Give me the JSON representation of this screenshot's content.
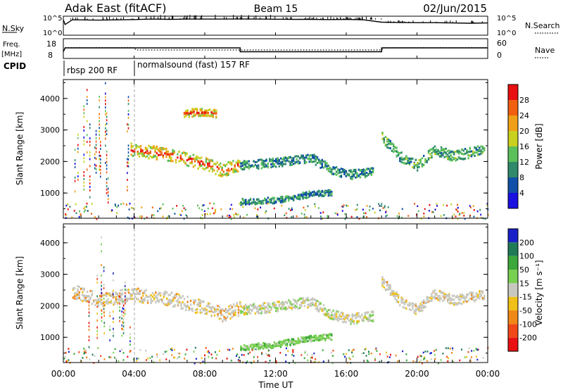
{
  "header": {
    "station": "Adak East (fitACF)",
    "beam": "Beam 15",
    "date": "02/Jun/2015"
  },
  "chart_data": [
    {
      "type": "line",
      "panel": "noise",
      "left_label": "N.Sky",
      "right_label": "N.Search",
      "yticks_left": [
        "10^5",
        "10^0"
      ],
      "yticks_right": [
        "10^5",
        "10^0"
      ],
      "series": [
        {
          "x": [
            0,
            0.1,
            0.5,
            1,
            2,
            3,
            4,
            5,
            6,
            7,
            8,
            9,
            10,
            11,
            12,
            13,
            14,
            15,
            16,
            17,
            18,
            19,
            20,
            21,
            22,
            23,
            24
          ],
          "y": [
            0.9,
            0.6,
            0.9,
            0.9,
            0.88,
            0.9,
            0.92,
            0.95,
            0.93,
            0.95,
            0.95,
            0.95,
            0.96,
            0.95,
            0.94,
            0.93,
            0.93,
            0.92,
            0.93,
            0.9,
            0.75,
            0.73,
            0.72,
            0.72,
            0.7,
            0.68,
            0.7
          ]
        }
      ]
    },
    {
      "type": "line",
      "panel": "frequency",
      "left_label": "Freq. [MHz]",
      "right_label": "Nave",
      "yticks_left": [
        "18",
        "8"
      ],
      "yticks_right": [
        "60",
        "0"
      ],
      "series": [
        {
          "name": "Freq.",
          "x": [
            0,
            0.1,
            10,
            10,
            18,
            18,
            24
          ],
          "y": [
            11,
            13.2,
            13.2,
            11,
            11,
            13.2,
            13.2
          ]
        },
        {
          "name": "Nave",
          "x": [
            0.1,
            4,
            4.1,
            18,
            18.1,
            24
          ],
          "y": [
            32,
            32,
            24,
            24,
            32,
            32
          ]
        }
      ]
    },
    {
      "type": "heatmap",
      "panel": "power",
      "ylabel": "Slant Range [km]",
      "yticks": [
        "1000",
        "2000",
        "3000",
        "4000"
      ],
      "ylim": [
        200,
        4600
      ],
      "colorbar_label": "Power [dB]",
      "colorbar_ticks": [
        "4",
        "8",
        "12",
        "16",
        "20",
        "24",
        "28"
      ],
      "colors": [
        "#1a10e0",
        "#1050a8",
        "#2e8a6a",
        "#5cc05a",
        "#c8d020",
        "#f0a018",
        "#f06010",
        "#e81010"
      ],
      "echoes": [
        {
          "x": [
            3.8,
            6,
            8,
            9,
            10
          ],
          "range": [
            2400,
            2250,
            1950,
            1750,
            1950
          ],
          "width": 260,
          "value": 18
        },
        {
          "x": [
            10,
            12,
            14,
            15,
            16,
            17.5
          ],
          "range": [
            1900,
            2000,
            2150,
            1800,
            1600,
            1700
          ],
          "width": 180,
          "value": 10
        },
        {
          "x": [
            18,
            19,
            20,
            21,
            22,
            23.8
          ],
          "range": [
            2800,
            2200,
            1900,
            2400,
            2200,
            2400
          ],
          "width": 200,
          "value": 12
        },
        {
          "x": [
            10,
            12,
            13,
            14,
            15.2
          ],
          "range": [
            750,
            800,
            900,
            1000,
            1050
          ],
          "width": 120,
          "value": 9
        },
        {
          "x": [
            6.8,
            7.5,
            8,
            8.6
          ],
          "range": [
            3550,
            3600,
            3600,
            3550
          ],
          "width": 160,
          "value": 18
        }
      ]
    },
    {
      "type": "heatmap",
      "panel": "velocity",
      "ylabel": "Slant Range [km]",
      "yticks": [
        "1000",
        "2000",
        "3000",
        "4000"
      ],
      "ylim": [
        200,
        4600
      ],
      "colorbar_label": "Velocity [m s⁻¹]",
      "colorbar_ticks": [
        "200",
        "100",
        "50",
        "15",
        "-15",
        "-50",
        "-100",
        "-200"
      ],
      "colors": [
        "#1a20c8",
        "#1f7a58",
        "#3ca83c",
        "#78d050",
        "#c8c8c0",
        "#f0c018",
        "#f08818",
        "#f04818",
        "#e81010"
      ],
      "echoes": [
        {
          "x": [
            0.5,
            2,
            3.8,
            6,
            8,
            9,
            10
          ],
          "range": [
            2500,
            2200,
            2400,
            2250,
            1950,
            1750,
            1950
          ],
          "width": 280,
          "value": 0
        },
        {
          "x": [
            10,
            12,
            14,
            15,
            16,
            17.5
          ],
          "range": [
            1900,
            2000,
            2150,
            1800,
            1600,
            1700
          ],
          "width": 200,
          "value": 20
        },
        {
          "x": [
            18,
            19,
            20,
            21,
            22,
            23.8
          ],
          "range": [
            2800,
            2200,
            1900,
            2400,
            2200,
            2400
          ],
          "width": 200,
          "value": 0
        },
        {
          "x": [
            10,
            12,
            13,
            14,
            15.2
          ],
          "range": [
            700,
            800,
            900,
            1000,
            1050
          ],
          "width": 120,
          "value": 60
        }
      ]
    }
  ],
  "xaxis": {
    "label": "Time UT",
    "ticks": [
      "00:00",
      "04:00",
      "08:00",
      "12:00",
      "16:00",
      "20:00",
      "00:00"
    ]
  },
  "cpid": {
    "label": "CPID",
    "mode1": "rbsp 200 RF",
    "mode2": "normalsound (fast) 157 RF"
  }
}
